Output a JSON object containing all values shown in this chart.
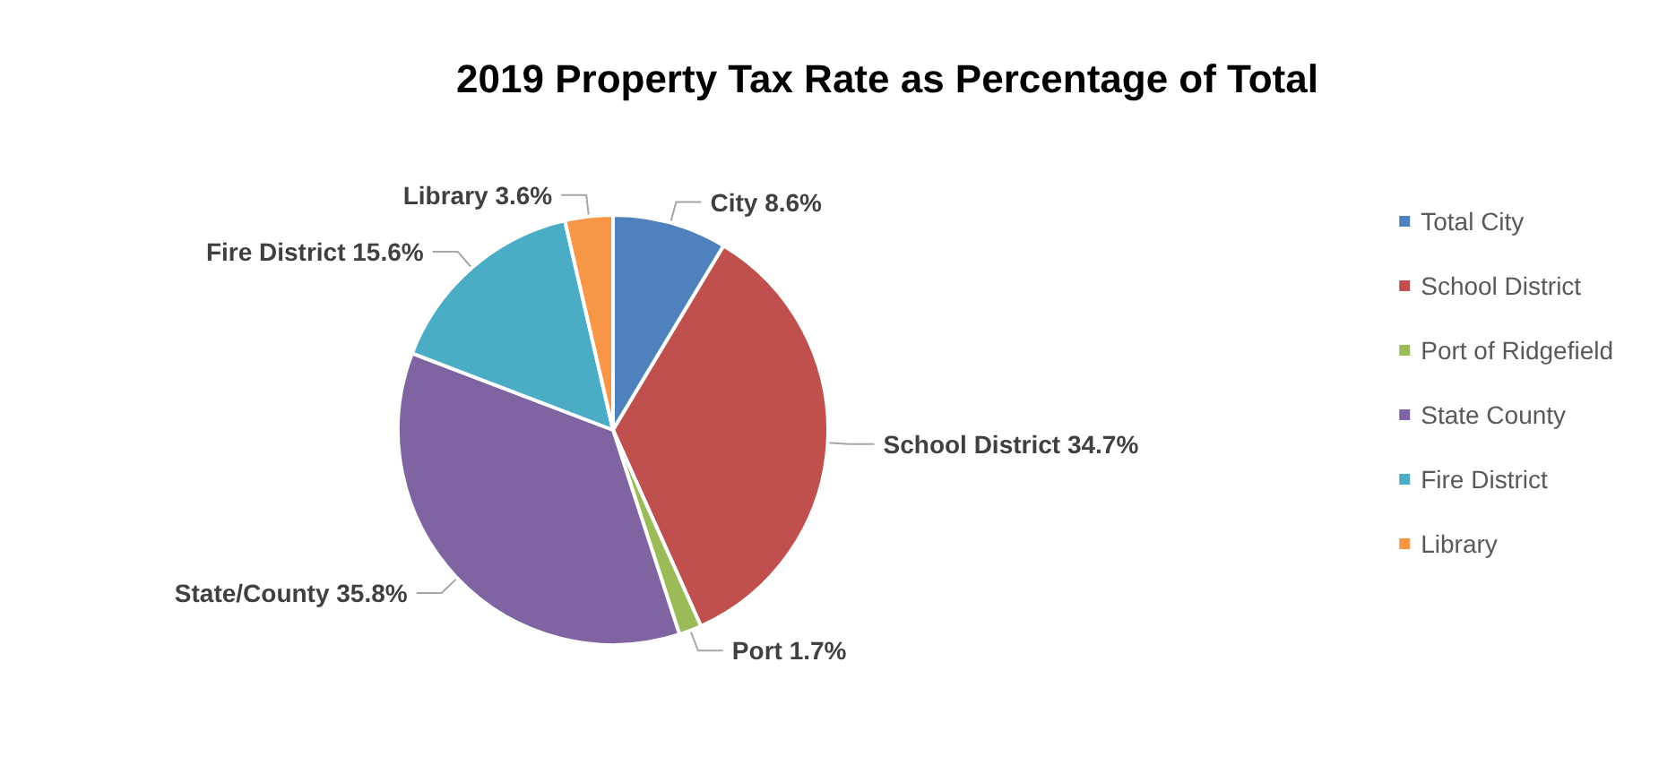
{
  "chart_data": {
    "type": "pie",
    "title": "2019 Property Tax Rate as Percentage of Total",
    "categories": [
      "Total City",
      "School District",
      "Port of Ridgefield",
      "State County",
      "Fire District",
      "Library"
    ],
    "values": [
      8.6,
      34.7,
      1.7,
      35.8,
      15.6,
      3.6
    ],
    "colors": [
      "#4f81bd",
      "#c0504d",
      "#9bbb59",
      "#8064a2",
      "#4bacc6",
      "#f79646"
    ],
    "value_labels": [
      "City 8.6%",
      "School District 34.7%",
      "Port 1.7%",
      "State/County 35.8%",
      "Fire District 15.6%",
      "Library 3.6%"
    ],
    "legend": "right"
  }
}
